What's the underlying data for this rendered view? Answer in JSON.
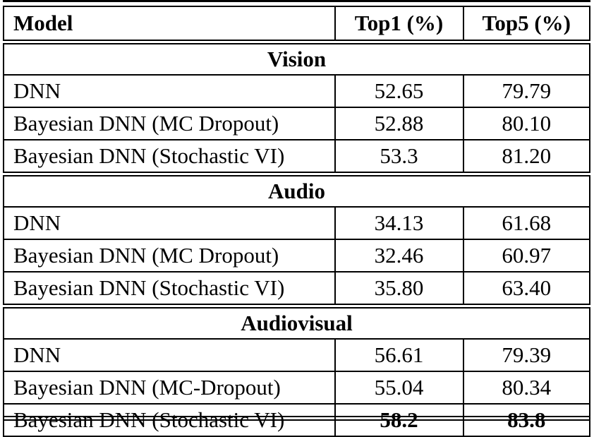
{
  "page": {
    "background_color": "#ffffff",
    "text_color": "#000000"
  },
  "table": {
    "columns": [
      "Model",
      "Top1 (%)",
      "Top5 (%)"
    ],
    "sections": [
      {
        "name": "Vision",
        "rows": [
          {
            "model": "DNN",
            "top1": "52.65",
            "top5": "79.79",
            "bold": false
          },
          {
            "model": "Bayesian DNN (MC Dropout)",
            "top1": "52.88",
            "top5": "80.10",
            "bold": false
          },
          {
            "model": "Bayesian DNN (Stochastic VI)",
            "top1": "53.3",
            "top5": "81.20",
            "bold": false
          }
        ]
      },
      {
        "name": "Audio",
        "rows": [
          {
            "model": "DNN",
            "top1": "34.13",
            "top5": "61.68",
            "bold": false
          },
          {
            "model": "Bayesian DNN (MC Dropout)",
            "top1": "32.46",
            "top5": "60.97",
            "bold": false
          },
          {
            "model": "Bayesian DNN (Stochastic VI)",
            "top1": "35.80",
            "top5": "63.40",
            "bold": false
          }
        ]
      },
      {
        "name": "Audiovisual",
        "rows": [
          {
            "model": "DNN",
            "top1": "56.61",
            "top5": "79.39",
            "bold": false
          },
          {
            "model": "Bayesian DNN (MC-Dropout)",
            "top1": "55.04",
            "top5": "80.34",
            "bold": false
          },
          {
            "model": "Bayesian DNN (Stochastic VI)",
            "top1": "58.2",
            "top5": "83.8",
            "bold": true
          }
        ]
      }
    ]
  }
}
